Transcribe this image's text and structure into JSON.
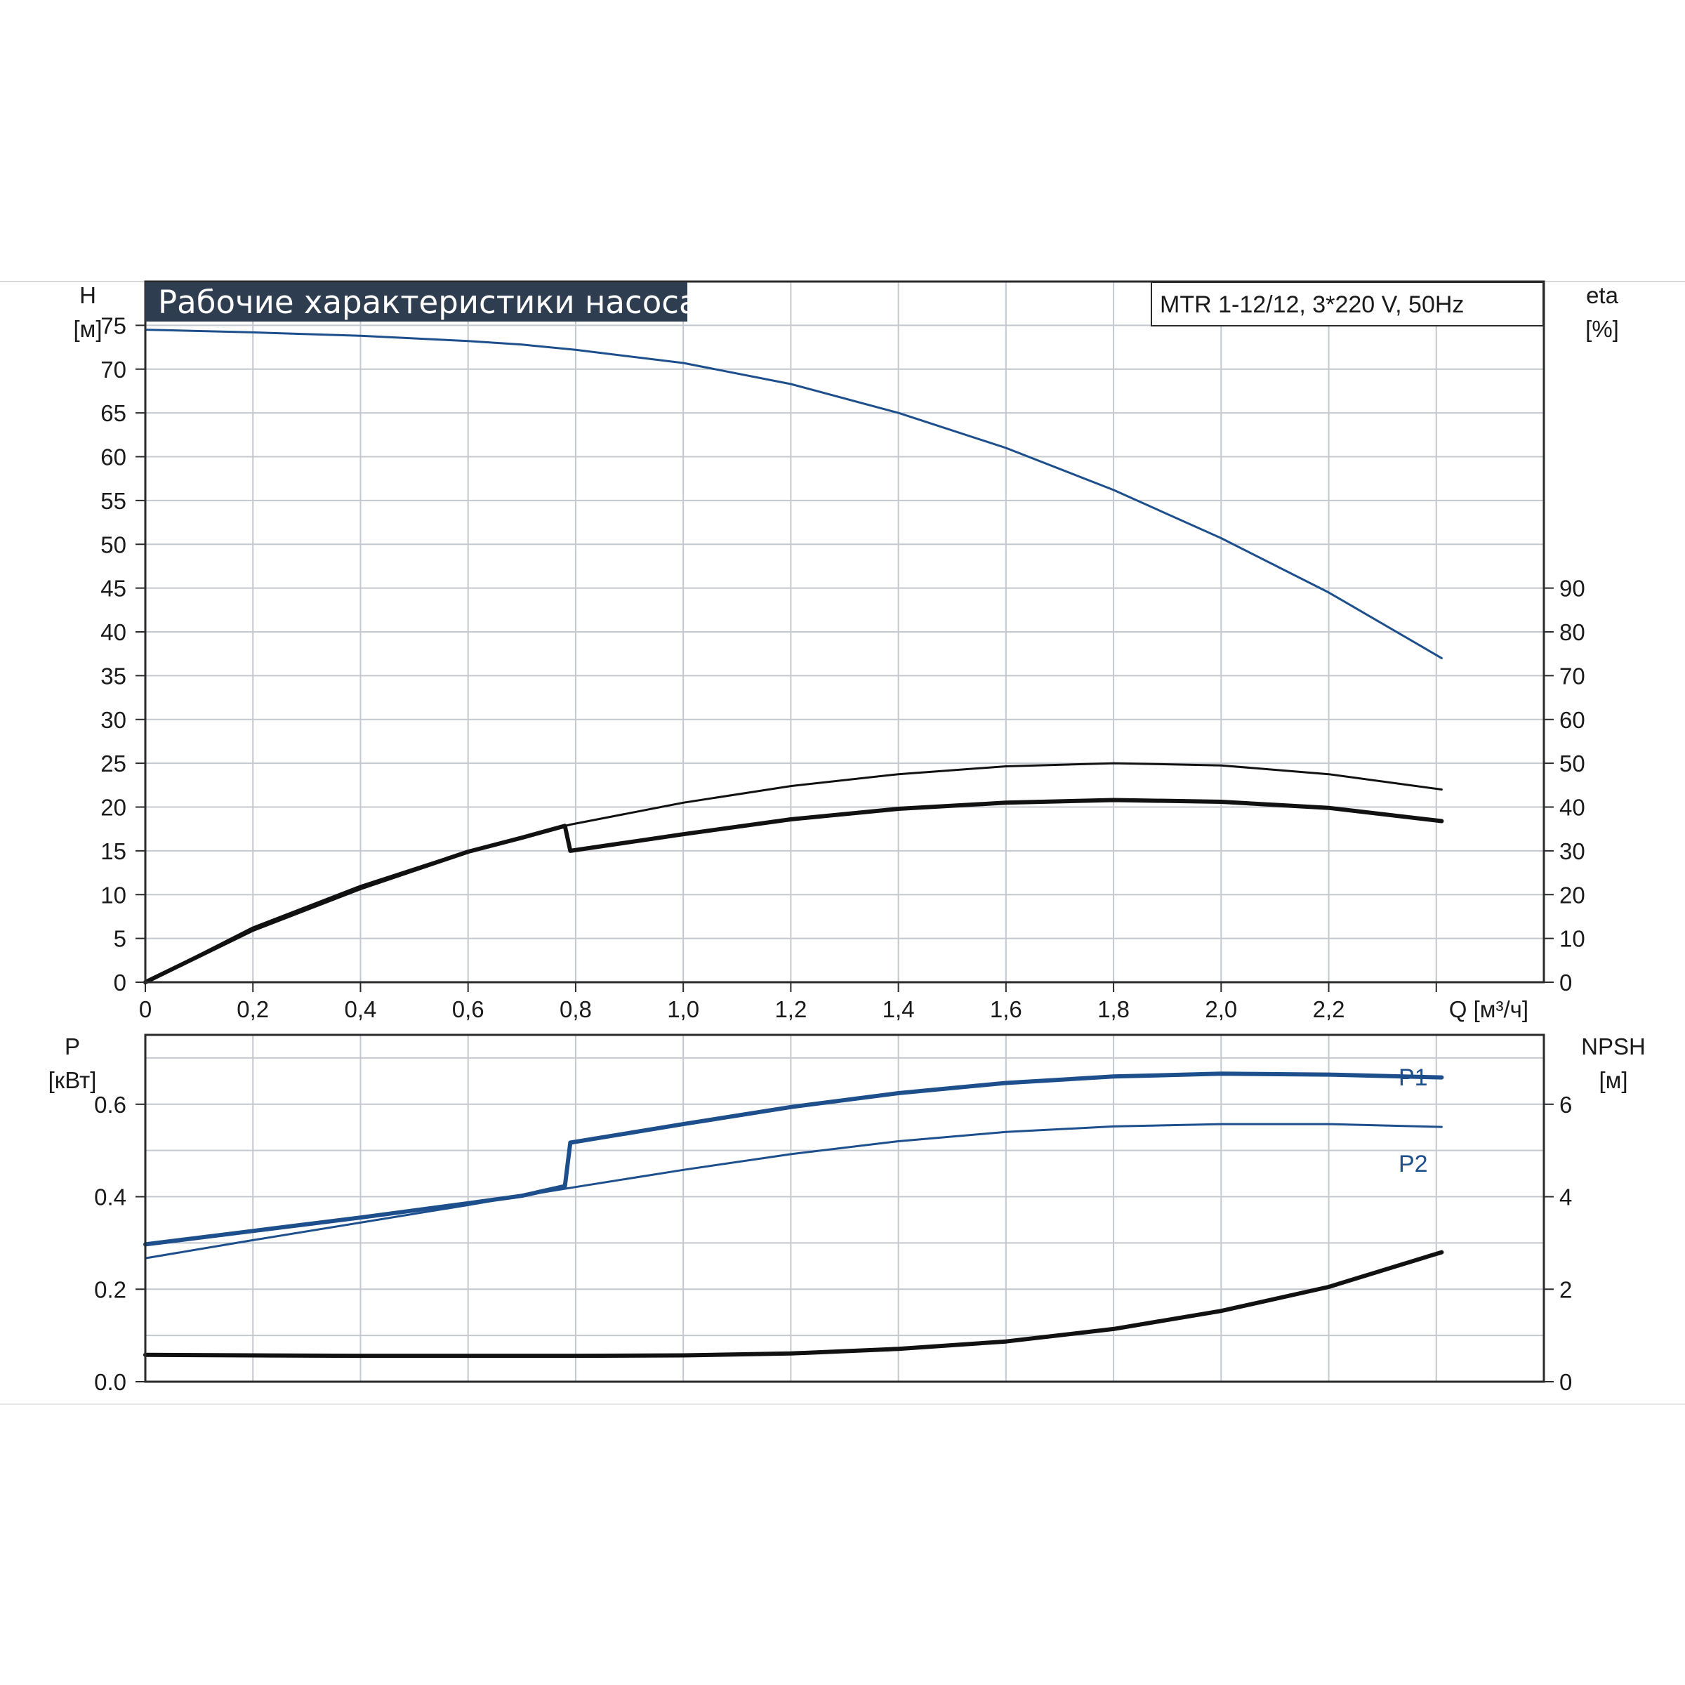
{
  "colors": {
    "accent_blue": "#1d4f8c",
    "curve_black": "#111111",
    "grid": "#c4c8cf",
    "frame": "#2a2a2a",
    "title_bg": "#2e3d50",
    "title_fg": "#ffffff"
  },
  "header": {
    "title": "Рабочие характеристики насоса",
    "model": "MTR 1-12/12, 3*220 V, 50Hz"
  },
  "chart_data": [
    {
      "type": "line",
      "xlabel": "Q [м³/ч]",
      "xlim": [
        0,
        2.6
      ],
      "x_ticks": [
        "0",
        "0,2",
        "0,4",
        "0,6",
        "0,8",
        "1,0",
        "1,2",
        "1,4",
        "1,6",
        "1,8",
        "2,0",
        "2,2"
      ],
      "y_left": {
        "label_top": "H",
        "label_unit": "[м]",
        "ylim": [
          0,
          80
        ],
        "ticks": [
          0,
          5,
          10,
          15,
          20,
          25,
          30,
          35,
          40,
          45,
          50,
          55,
          60,
          65,
          70,
          75
        ]
      },
      "y_right": {
        "label_top": "eta",
        "label_unit": "[%]",
        "ylim": [
          0,
          160
        ],
        "ticks": [
          0,
          10,
          20,
          30,
          40,
          50,
          60,
          70,
          80,
          90
        ]
      },
      "grid": true,
      "series": [
        {
          "axis": "left",
          "color": "#1d4f8c",
          "x": [
            0,
            0.2,
            0.4,
            0.6,
            0.7,
            0.8,
            1.0,
            1.2,
            1.4,
            1.6,
            1.8,
            2.0,
            2.2,
            2.41
          ],
          "y": [
            74.5,
            74.2,
            73.8,
            73.2,
            72.8,
            72.2,
            70.7,
            68.3,
            65.0,
            61.0,
            56.2,
            50.7,
            44.5,
            37.0
          ]
        },
        {
          "axis": "right",
          "color": "#111111",
          "x": [
            0,
            0.2,
            0.4,
            0.6,
            0.7,
            0.79,
            1.0,
            1.2,
            1.4,
            1.6,
            1.8,
            2.0,
            2.2,
            2.41
          ],
          "y": [
            0,
            12.5,
            22.0,
            30.0,
            33.0,
            36.0,
            41.0,
            44.8,
            47.5,
            49.3,
            50.0,
            49.5,
            47.5,
            44.0
          ]
        },
        {
          "axis": "right",
          "color": "#111111",
          "x": [
            0,
            0.2,
            0.4,
            0.6,
            0.7,
            0.78,
            0.79,
            1.0,
            1.2,
            1.4,
            1.6,
            1.8,
            2.0,
            2.2,
            2.41
          ],
          "y": [
            0,
            12.0,
            21.5,
            29.8,
            33.0,
            35.7,
            30.0,
            33.8,
            37.2,
            39.6,
            41.0,
            41.6,
            41.2,
            39.8,
            36.8
          ]
        }
      ]
    },
    {
      "type": "line",
      "xlim": [
        0,
        2.6
      ],
      "y_left": {
        "label_top": "P",
        "label_unit": "[кВт]",
        "ylim": [
          0,
          0.75
        ],
        "ticks": [
          "0.0",
          "0.2",
          "0.4",
          "0.6"
        ]
      },
      "y_right": {
        "label_top": "NPSH",
        "label_unit": "[м]",
        "ylim": [
          0,
          7.5
        ],
        "ticks": [
          "0",
          "2",
          "4",
          "6"
        ]
      },
      "grid": true,
      "series": [
        {
          "name": "P1",
          "axis": "left",
          "color": "#1d4f8c",
          "x": [
            0,
            0.2,
            0.4,
            0.6,
            0.7,
            0.78,
            0.79,
            1.0,
            1.2,
            1.4,
            1.6,
            1.8,
            2.0,
            2.2,
            2.41
          ],
          "y": [
            0.297,
            0.326,
            0.355,
            0.386,
            0.402,
            0.423,
            0.517,
            0.557,
            0.594,
            0.624,
            0.646,
            0.66,
            0.666,
            0.664,
            0.658
          ]
        },
        {
          "name": "P2",
          "axis": "left",
          "color": "#1d4f8c",
          "x": [
            0,
            0.2,
            0.4,
            0.6,
            0.7,
            0.8,
            1.0,
            1.2,
            1.4,
            1.6,
            1.8,
            2.0,
            2.2,
            2.41
          ],
          "y": [
            0.267,
            0.306,
            0.344,
            0.382,
            0.402,
            0.421,
            0.458,
            0.492,
            0.52,
            0.54,
            0.552,
            0.557,
            0.557,
            0.551
          ]
        },
        {
          "axis": "right",
          "color": "#111111",
          "x": [
            0,
            0.2,
            0.4,
            0.6,
            0.7,
            0.8,
            1.0,
            1.2,
            1.4,
            1.6,
            1.8,
            2.0,
            2.2,
            2.41
          ],
          "y": [
            0.58,
            0.57,
            0.56,
            0.56,
            0.56,
            0.56,
            0.57,
            0.61,
            0.71,
            0.87,
            1.14,
            1.53,
            2.05,
            2.8
          ]
        }
      ]
    }
  ]
}
